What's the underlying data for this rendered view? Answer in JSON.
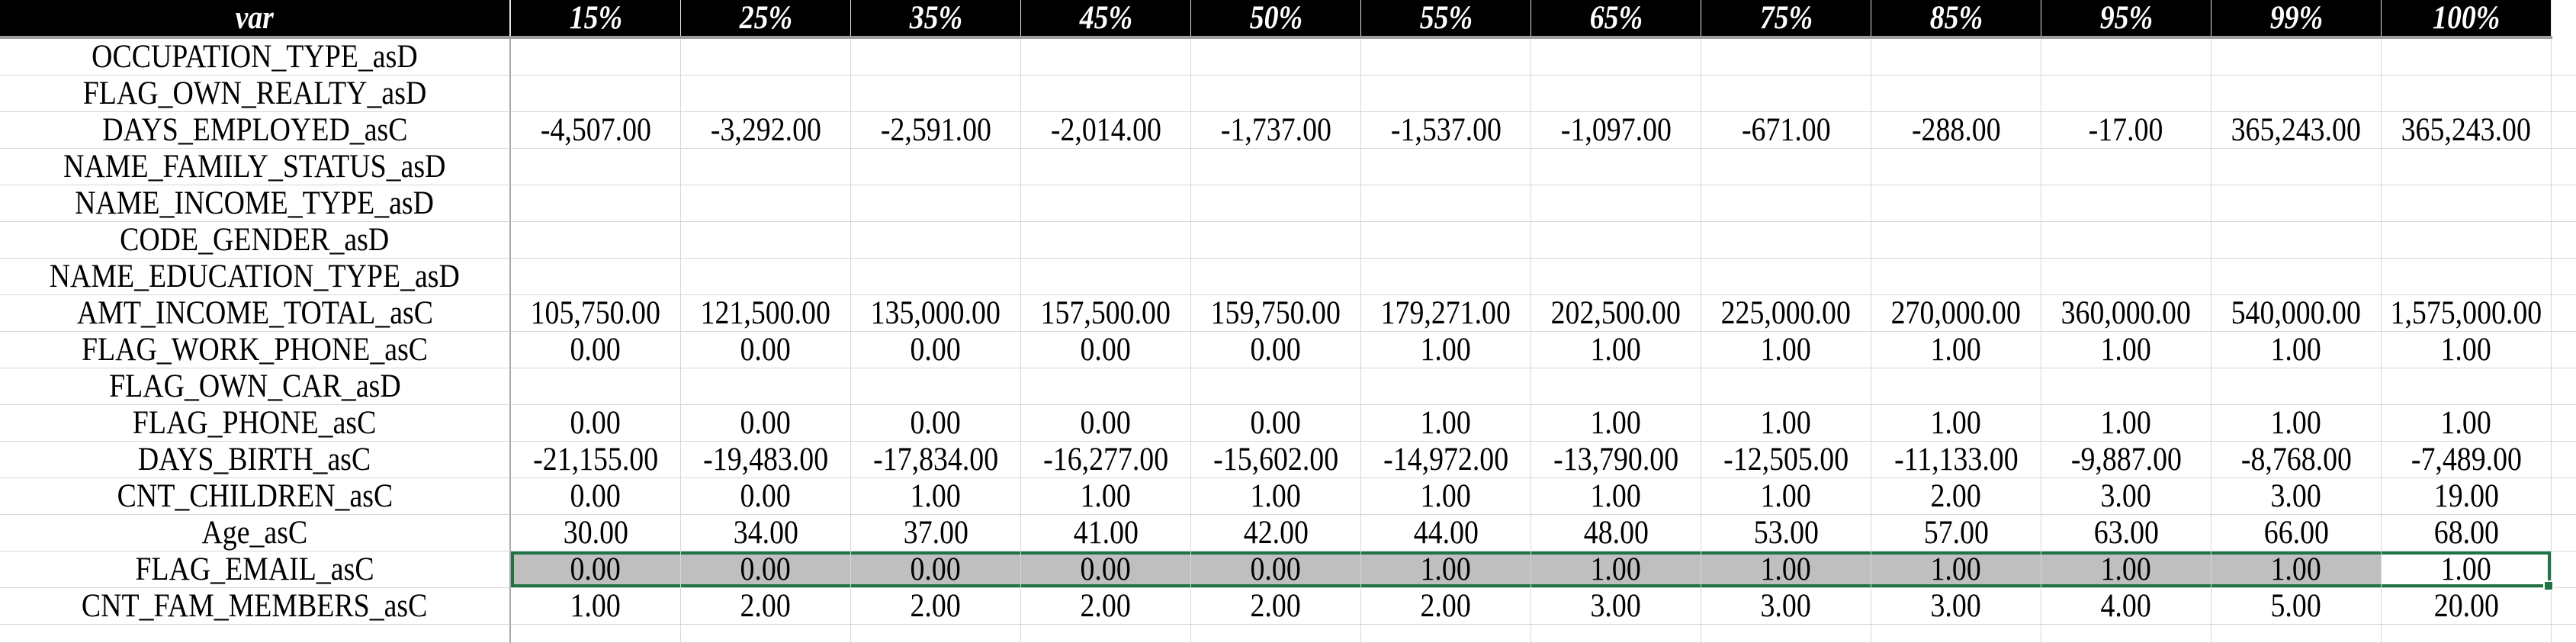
{
  "app": {
    "description": "Spreadsheet showing percentile statistics per variable"
  },
  "table": {
    "header": [
      "var",
      "15%",
      "25%",
      "35%",
      "45%",
      "50%",
      "55%",
      "65%",
      "75%",
      "85%",
      "95%",
      "99%",
      "100%"
    ],
    "rows": [
      {
        "var": "OCCUPATION_TYPE_asD",
        "values": [
          "",
          "",
          "",
          "",
          "",
          "",
          "",
          "",
          "",
          "",
          "",
          ""
        ]
      },
      {
        "var": "FLAG_OWN_REALTY_asD",
        "values": [
          "",
          "",
          "",
          "",
          "",
          "",
          "",
          "",
          "",
          "",
          "",
          ""
        ]
      },
      {
        "var": "DAYS_EMPLOYED_asC",
        "values": [
          "-4,507.00",
          "-3,292.00",
          "-2,591.00",
          "-2,014.00",
          "-1,737.00",
          "-1,537.00",
          "-1,097.00",
          "-671.00",
          "-288.00",
          "-17.00",
          "365,243.00",
          "365,243.00"
        ]
      },
      {
        "var": "NAME_FAMILY_STATUS_asD",
        "values": [
          "",
          "",
          "",
          "",
          "",
          "",
          "",
          "",
          "",
          "",
          "",
          ""
        ]
      },
      {
        "var": "NAME_INCOME_TYPE_asD",
        "values": [
          "",
          "",
          "",
          "",
          "",
          "",
          "",
          "",
          "",
          "",
          "",
          ""
        ]
      },
      {
        "var": "CODE_GENDER_asD",
        "values": [
          "",
          "",
          "",
          "",
          "",
          "",
          "",
          "",
          "",
          "",
          "",
          ""
        ]
      },
      {
        "var": "NAME_EDUCATION_TYPE_asD",
        "values": [
          "",
          "",
          "",
          "",
          "",
          "",
          "",
          "",
          "",
          "",
          "",
          ""
        ]
      },
      {
        "var": "AMT_INCOME_TOTAL_asC",
        "values": [
          "105,750.00",
          "121,500.00",
          "135,000.00",
          "157,500.00",
          "159,750.00",
          "179,271.00",
          "202,500.00",
          "225,000.00",
          "270,000.00",
          "360,000.00",
          "540,000.00",
          "1,575,000.00"
        ]
      },
      {
        "var": "FLAG_WORK_PHONE_asC",
        "values": [
          "0.00",
          "0.00",
          "0.00",
          "0.00",
          "0.00",
          "1.00",
          "1.00",
          "1.00",
          "1.00",
          "1.00",
          "1.00",
          "1.00"
        ]
      },
      {
        "var": "FLAG_OWN_CAR_asD",
        "values": [
          "",
          "",
          "",
          "",
          "",
          "",
          "",
          "",
          "",
          "",
          "",
          ""
        ]
      },
      {
        "var": "FLAG_PHONE_asC",
        "values": [
          "0.00",
          "0.00",
          "0.00",
          "0.00",
          "0.00",
          "1.00",
          "1.00",
          "1.00",
          "1.00",
          "1.00",
          "1.00",
          "1.00"
        ]
      },
      {
        "var": "DAYS_BIRTH_asC",
        "values": [
          "-21,155.00",
          "-19,483.00",
          "-17,834.00",
          "-16,277.00",
          "-15,602.00",
          "-14,972.00",
          "-13,790.00",
          "-12,505.00",
          "-11,133.00",
          "-9,887.00",
          "-8,768.00",
          "-7,489.00"
        ]
      },
      {
        "var": "CNT_CHILDREN_asC",
        "values": [
          "0.00",
          "0.00",
          "1.00",
          "1.00",
          "1.00",
          "1.00",
          "1.00",
          "1.00",
          "2.00",
          "3.00",
          "3.00",
          "19.00"
        ]
      },
      {
        "var": "Age_asC",
        "values": [
          "30.00",
          "34.00",
          "37.00",
          "41.00",
          "42.00",
          "44.00",
          "48.00",
          "53.00",
          "57.00",
          "63.00",
          "66.00",
          "68.00"
        ]
      },
      {
        "var": "FLAG_EMAIL_asC",
        "values": [
          "0.00",
          "0.00",
          "0.00",
          "0.00",
          "0.00",
          "1.00",
          "1.00",
          "1.00",
          "1.00",
          "1.00",
          "1.00",
          "1.00"
        ]
      },
      {
        "var": "CNT_FAM_MEMBERS_asC",
        "values": [
          "1.00",
          "2.00",
          "2.00",
          "2.00",
          "2.00",
          "2.00",
          "3.00",
          "3.00",
          "3.00",
          "4.00",
          "5.00",
          "20.00"
        ]
      }
    ]
  },
  "selection": {
    "row_var": "FLAG_EMAIL_asC",
    "selected_columns": [
      "15%",
      "25%",
      "35%",
      "45%",
      "50%",
      "55%",
      "65%",
      "75%",
      "85%",
      "95%",
      "99%",
      "100%"
    ],
    "active_column": "100%",
    "active_value": "1.00",
    "range_fill_color": "#bfbfbf",
    "border_color": "#217346"
  },
  "colors": {
    "header_bg": "#000000",
    "header_text": "#ffffff",
    "gridline": "#d6d6d6",
    "header_underline": "#9e9e9e"
  }
}
